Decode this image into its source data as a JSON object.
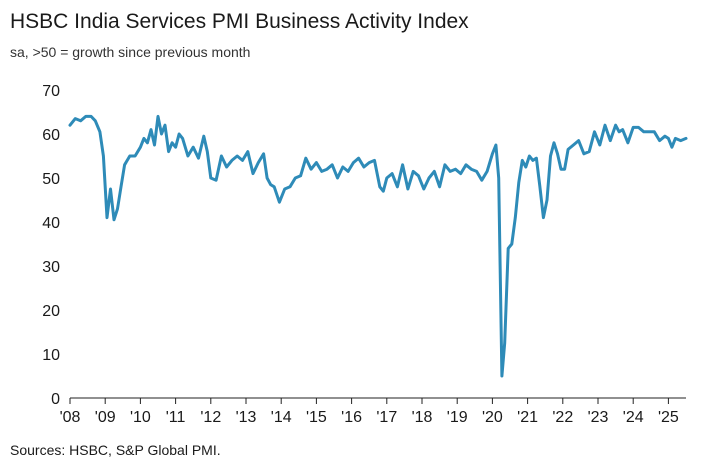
{
  "chart_data": {
    "type": "line",
    "title": "HSBC India Services PMI Business Activity Index",
    "subtitle": "sa, >50 = growth since previous month",
    "source": "Sources: HSBC, S&P Global PMI.",
    "ylim": [
      0,
      70
    ],
    "xlim": [
      2008.0,
      2025.5
    ],
    "y_ticks": [
      0,
      10,
      20,
      30,
      40,
      50,
      60,
      70
    ],
    "x_ticks": [
      2008,
      2009,
      2010,
      2011,
      2012,
      2013,
      2014,
      2015,
      2016,
      2017,
      2018,
      2019,
      2020,
      2021,
      2022,
      2023,
      2024,
      2025
    ],
    "x_tick_labels": [
      "'08",
      "'09",
      "'10",
      "'11",
      "'12",
      "'13",
      "'14",
      "'15",
      "'16",
      "'17",
      "'18",
      "'19",
      "'20",
      "'21",
      "'22",
      "'23",
      "'24",
      "'25"
    ],
    "grid": false,
    "legend": "none",
    "line_color": "#2e8bb8",
    "series": [
      {
        "x": [
          2008.0,
          2008.15,
          2008.3,
          2008.45,
          2008.6,
          2008.72,
          2008.85,
          2008.95,
          2009.05,
          2009.15,
          2009.25,
          2009.35,
          2009.45,
          2009.55,
          2009.7,
          2009.85,
          2010.0,
          2010.1,
          2010.2,
          2010.3,
          2010.4,
          2010.5,
          2010.6,
          2010.7,
          2010.8,
          2010.9,
          2011.0,
          2011.1,
          2011.2,
          2011.35,
          2011.5,
          2011.65,
          2011.8,
          2011.9,
          2012.0,
          2012.15,
          2012.3,
          2012.45,
          2012.6,
          2012.75,
          2012.9,
          2013.05,
          2013.2,
          2013.35,
          2013.5,
          2013.6,
          2013.7,
          2013.8,
          2013.95,
          2014.1,
          2014.25,
          2014.4,
          2014.55,
          2014.7,
          2014.85,
          2015.0,
          2015.15,
          2015.3,
          2015.45,
          2015.6,
          2015.75,
          2015.9,
          2016.05,
          2016.2,
          2016.35,
          2016.5,
          2016.65,
          2016.8,
          2016.9,
          2017.0,
          2017.15,
          2017.3,
          2017.45,
          2017.6,
          2017.75,
          2017.9,
          2018.05,
          2018.2,
          2018.35,
          2018.5,
          2018.65,
          2018.8,
          2018.95,
          2019.1,
          2019.25,
          2019.4,
          2019.55,
          2019.7,
          2019.85,
          2020.0,
          2020.1,
          2020.18,
          2020.27,
          2020.35,
          2020.45,
          2020.55,
          2020.65,
          2020.75,
          2020.85,
          2020.95,
          2021.05,
          2021.15,
          2021.25,
          2021.35,
          2021.45,
          2021.55,
          2021.65,
          2021.75,
          2021.85,
          2021.95,
          2022.05,
          2022.15,
          2022.3,
          2022.45,
          2022.6,
          2022.75,
          2022.9,
          2023.05,
          2023.2,
          2023.35,
          2023.5,
          2023.6,
          2023.7,
          2023.85,
          2024.0,
          2024.15,
          2024.3,
          2024.45,
          2024.6,
          2024.75,
          2024.9,
          2025.0,
          2025.1,
          2025.2,
          2025.35,
          2025.5
        ],
        "values": [
          62.0,
          63.5,
          63.0,
          64.0,
          64.0,
          63.0,
          60.5,
          55.0,
          41.0,
          47.5,
          40.5,
          43.0,
          48.0,
          53.0,
          55.0,
          55.0,
          57.0,
          59.0,
          58.0,
          61.0,
          57.5,
          64.0,
          60.0,
          62.0,
          56.0,
          58.0,
          57.0,
          60.0,
          59.0,
          55.0,
          57.0,
          54.5,
          59.5,
          56.0,
          50.0,
          49.5,
          55.0,
          52.5,
          54.0,
          55.0,
          54.0,
          56.0,
          51.0,
          53.5,
          55.5,
          50.0,
          48.5,
          48.0,
          44.5,
          47.5,
          48.0,
          50.0,
          50.5,
          54.5,
          52.0,
          53.5,
          51.5,
          52.0,
          53.0,
          50.0,
          52.5,
          51.5,
          53.5,
          54.5,
          52.5,
          53.5,
          54.0,
          48.0,
          47.0,
          50.0,
          51.0,
          48.0,
          53.0,
          47.5,
          51.5,
          50.5,
          47.5,
          50.0,
          51.5,
          48.0,
          53.0,
          51.5,
          52.0,
          51.0,
          53.0,
          52.0,
          51.5,
          49.5,
          51.5,
          55.5,
          57.5,
          50.0,
          5.0,
          12.5,
          34.0,
          35.0,
          41.0,
          49.0,
          54.0,
          52.5,
          55.0,
          54.0,
          54.5,
          48.0,
          41.0,
          45.0,
          55.0,
          58.0,
          55.5,
          52.0,
          52.0,
          56.5,
          57.5,
          58.5,
          55.5,
          56.0,
          60.5,
          57.5,
          62.0,
          58.5,
          62.0,
          60.5,
          61.0,
          58.0,
          61.5,
          61.5,
          60.5,
          60.5,
          60.5,
          58.5,
          59.5,
          59.0,
          57.0,
          59.0,
          58.5,
          59.0
        ]
      }
    ]
  }
}
